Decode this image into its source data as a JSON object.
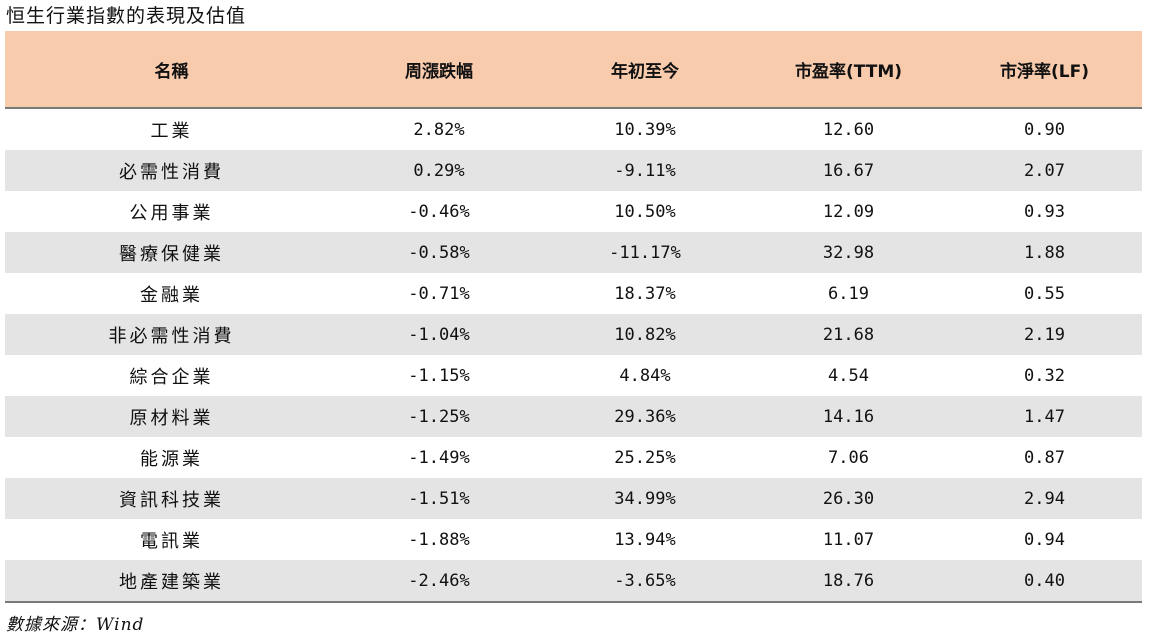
{
  "title": "恒生行業指數的表現及估值",
  "headers": [
    "名稱",
    "周漲跌幅",
    "年初至今",
    "市盈率(TTM)",
    "市淨率(LF)"
  ],
  "rows": [
    {
      "name": "工業",
      "weekly": "2.82%",
      "ytd": "10.39%",
      "pe": "12.60",
      "pb": "0.90"
    },
    {
      "name": "必需性消費",
      "weekly": "0.29%",
      "ytd": "-9.11%",
      "pe": "16.67",
      "pb": "2.07"
    },
    {
      "name": "公用事業",
      "weekly": "-0.46%",
      "ytd": "10.50%",
      "pe": "12.09",
      "pb": "0.93"
    },
    {
      "name": "醫療保健業",
      "weekly": "-0.58%",
      "ytd": "-11.17%",
      "pe": "32.98",
      "pb": "1.88"
    },
    {
      "name": "金融業",
      "weekly": "-0.71%",
      "ytd": "18.37%",
      "pe": "6.19",
      "pb": "0.55"
    },
    {
      "name": "非必需性消費",
      "weekly": "-1.04%",
      "ytd": "10.82%",
      "pe": "21.68",
      "pb": "2.19"
    },
    {
      "name": "綜合企業",
      "weekly": "-1.15%",
      "ytd": "4.84%",
      "pe": "4.54",
      "pb": "0.32"
    },
    {
      "name": "原材料業",
      "weekly": "-1.25%",
      "ytd": "29.36%",
      "pe": "14.16",
      "pb": "1.47"
    },
    {
      "name": "能源業",
      "weekly": "-1.49%",
      "ytd": "25.25%",
      "pe": "7.06",
      "pb": "0.87"
    },
    {
      "name": "資訊科技業",
      "weekly": "-1.51%",
      "ytd": "34.99%",
      "pe": "26.30",
      "pb": "2.94"
    },
    {
      "name": "電訊業",
      "weekly": "-1.88%",
      "ytd": "13.94%",
      "pe": "11.07",
      "pb": "0.94"
    },
    {
      "name": "地產建築業",
      "weekly": "-2.46%",
      "ytd": "-3.65%",
      "pe": "18.76",
      "pb": "0.40"
    }
  ],
  "source": "數據來源：Wind",
  "colors": {
    "header_bg": "#f9cbad",
    "stripe_bg": "#e4e4e4"
  }
}
